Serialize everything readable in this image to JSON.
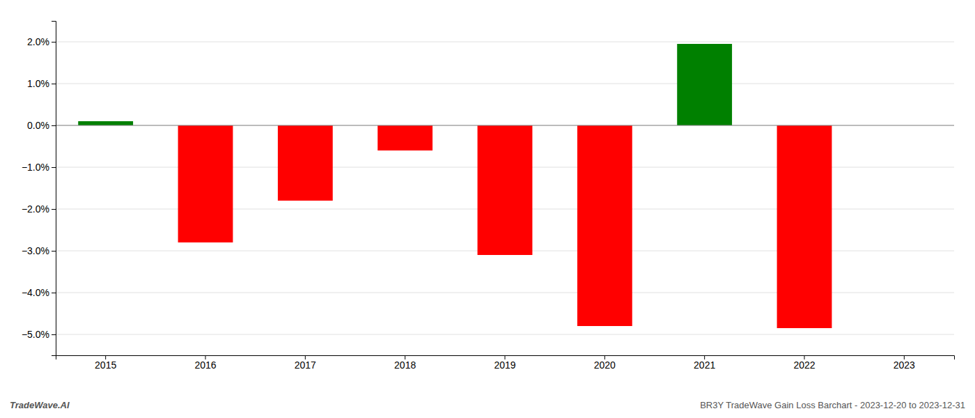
{
  "chart_data": {
    "type": "bar",
    "categories": [
      "2015",
      "2016",
      "2017",
      "2018",
      "2019",
      "2020",
      "2021",
      "2022",
      "2023"
    ],
    "values": [
      0.001,
      -0.028,
      -0.018,
      -0.006,
      -0.031,
      -0.048,
      0.0195,
      -0.0485,
      0.0
    ],
    "colors": [
      "#008000",
      "#ff0000",
      "#ff0000",
      "#ff0000",
      "#ff0000",
      "#ff0000",
      "#008000",
      "#ff0000",
      "#ff0000"
    ],
    "ylim": [
      -0.055,
      0.025
    ],
    "yticks": [
      {
        "value": -0.05,
        "label": "−5.0%"
      },
      {
        "value": -0.04,
        "label": "−4.0%"
      },
      {
        "value": -0.03,
        "label": "−3.0%"
      },
      {
        "value": -0.02,
        "label": "−2.0%"
      },
      {
        "value": -0.01,
        "label": "−1.0%"
      },
      {
        "value": 0.0,
        "label": "0.0%"
      },
      {
        "value": 0.01,
        "label": "1.0%"
      },
      {
        "value": 0.02,
        "label": "2.0%"
      }
    ],
    "grid": true,
    "annotations": [
      "TradeWave.AI",
      "BR3Y TradeWave Gain Loss Barchart - 2023-12-20 to 2023-12-31"
    ]
  }
}
